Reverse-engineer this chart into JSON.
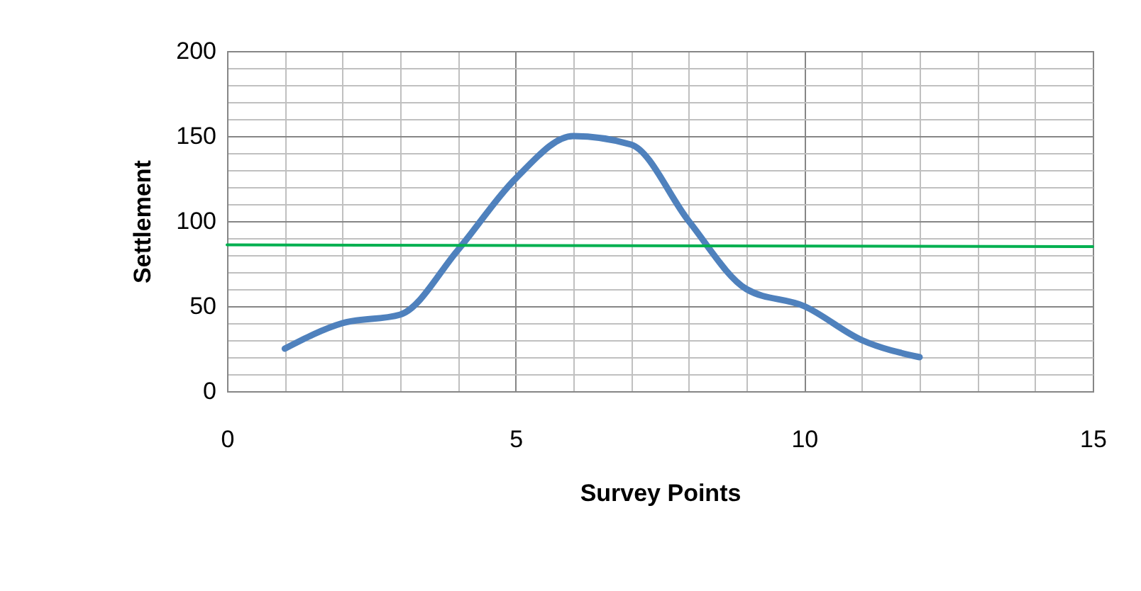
{
  "chart_data": {
    "type": "line",
    "xlabel": "Survey Points",
    "ylabel": "Settlement",
    "xlim": [
      0,
      15
    ],
    "xticks": [
      0,
      5,
      10,
      15
    ],
    "ylim": [
      0,
      200
    ],
    "yticks": [
      0,
      50,
      100,
      150,
      200
    ],
    "grid": true,
    "marker": "none",
    "series": [
      {
        "color": "#4f81bd",
        "x": [
          1,
          2,
          3,
          4,
          5,
          6,
          7,
          8,
          9,
          10,
          11,
          12
        ],
        "values": [
          25,
          40,
          45,
          83,
          125,
          150,
          145,
          100,
          60,
          50,
          30,
          20
        ]
      },
      {
        "color": "#00b050",
        "x": [
          0,
          15
        ],
        "values": [
          86,
          85
        ]
      }
    ]
  }
}
